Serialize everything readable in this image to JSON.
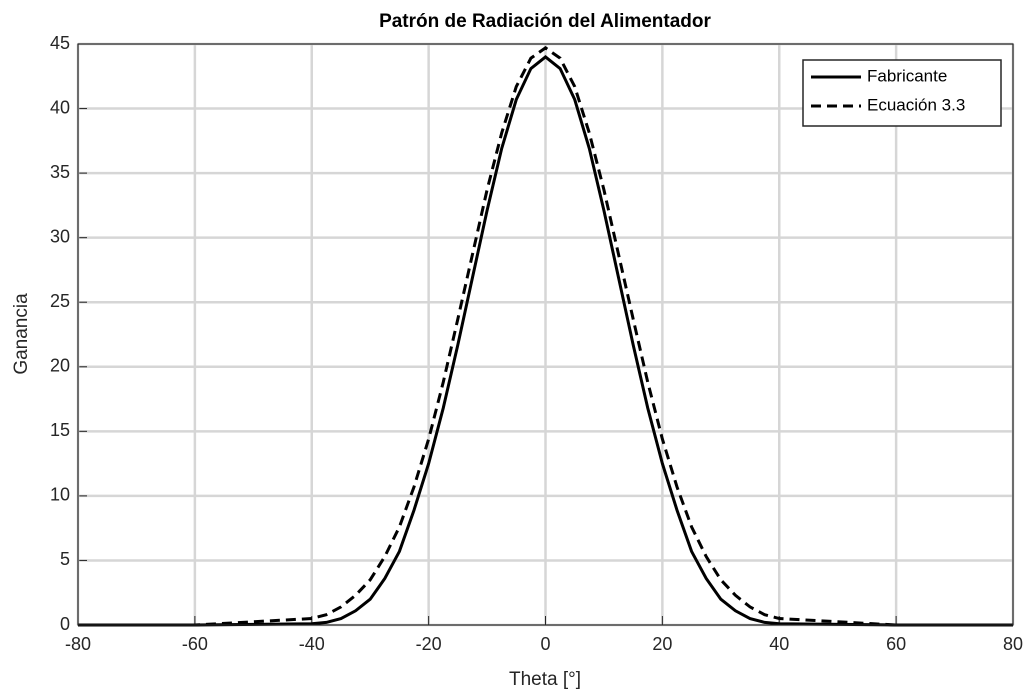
{
  "chart_data": {
    "type": "line",
    "title": "Patrón de Radiación del Alimentador",
    "xlabel": "Theta [°]",
    "ylabel": "Ganancia",
    "x": [
      -80,
      -60,
      -40,
      -37.5,
      -35,
      -32.5,
      -30,
      -27.5,
      -25,
      -22.5,
      -20,
      -17.5,
      -15,
      -12.5,
      -10,
      -7.5,
      -5,
      -2.5,
      0,
      2.5,
      5,
      7.5,
      10,
      12.5,
      15,
      17.5,
      20,
      22.5,
      25,
      27.5,
      30,
      32.5,
      35,
      37.5,
      40,
      60,
      80
    ],
    "series": [
      {
        "name": "Fabricante",
        "color": "#000000",
        "style": "solid",
        "values": [
          0,
          0,
          0.1,
          0.2,
          0.5,
          1.1,
          2.0,
          3.6,
          5.7,
          8.9,
          12.5,
          16.8,
          21.7,
          26.9,
          32.1,
          36.9,
          40.7,
          43.1,
          44,
          43.1,
          40.7,
          36.9,
          32.1,
          26.9,
          21.7,
          16.8,
          12.5,
          8.9,
          5.7,
          3.6,
          2.0,
          1.1,
          0.5,
          0.2,
          0.1,
          0,
          0
        ]
      },
      {
        "name": "Ecuación 3.3",
        "color": "#000000",
        "style": "dashed",
        "values": [
          0,
          0,
          0.5,
          0.8,
          1.4,
          2.3,
          3.5,
          5.3,
          7.6,
          10.7,
          14.4,
          18.8,
          23.7,
          28.7,
          33.7,
          38.1,
          41.7,
          43.9,
          44.7,
          43.9,
          41.7,
          38.1,
          33.7,
          28.7,
          23.7,
          18.8,
          14.4,
          10.7,
          7.6,
          5.3,
          3.5,
          2.3,
          1.4,
          0.8,
          0.5,
          0,
          0
        ]
      }
    ],
    "xlim": [
      -80,
      80
    ],
    "xticks": [
      -80,
      -60,
      -40,
      -20,
      0,
      20,
      40,
      60,
      80
    ],
    "ylim": [
      0,
      45
    ],
    "yticks": [
      0,
      5,
      10,
      15,
      20,
      25,
      30,
      35,
      40,
      45
    ],
    "grid": true,
    "legend": "northeast"
  }
}
